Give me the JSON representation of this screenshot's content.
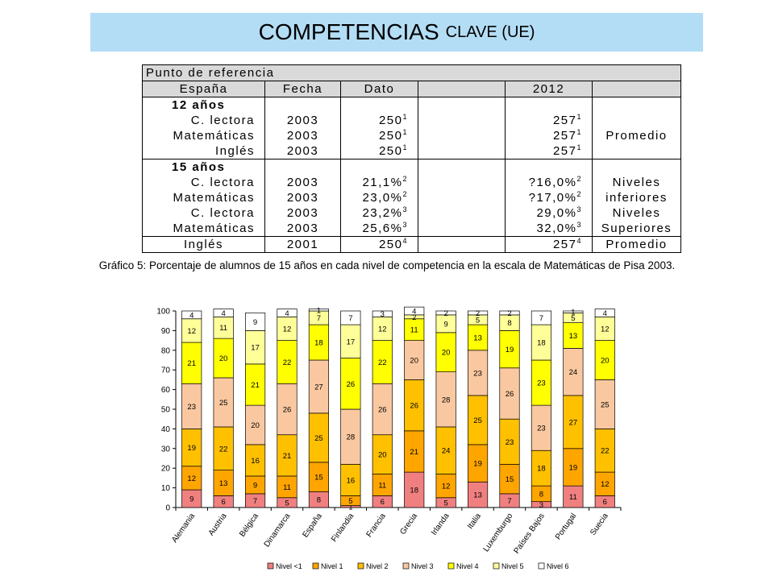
{
  "page_title": {
    "main": "COMPETENCIAS",
    "sub": "CLAVE (UE)"
  },
  "ref_table": {
    "header": "Punto de referencia",
    "columns": [
      "España",
      "Fecha",
      "Dato",
      "",
      "2012",
      ""
    ],
    "group_12": "12 años",
    "rows_12": [
      {
        "label": "C. lectora",
        "fecha": "2003",
        "dato": "250",
        "dato_sup": "1",
        "v2012": "257",
        "v2012_sup": "1",
        "tipo": ""
      },
      {
        "label": "Matemáticas",
        "fecha": "2003",
        "dato": "250",
        "dato_sup": "1",
        "v2012": "257",
        "v2012_sup": "1",
        "tipo": "Promedio"
      },
      {
        "label": "Inglés",
        "fecha": "2003",
        "dato": "250",
        "dato_sup": "1",
        "v2012": "257",
        "v2012_sup": "1",
        "tipo": ""
      }
    ],
    "group_15": "15 años",
    "rows_15": [
      {
        "label": "C. lectora",
        "fecha": "2003",
        "dato": "21,1%",
        "dato_sup": "2",
        "v2012": "?16,0%",
        "v2012_sup": "2",
        "tipo": "Niveles"
      },
      {
        "label": "Matemáticas",
        "fecha": "2003",
        "dato": "23,0%",
        "dato_sup": "2",
        "v2012": "?17,0%",
        "v2012_sup": "2",
        "tipo": "inferiores"
      },
      {
        "label": "C. lectora",
        "fecha": "2003",
        "dato": "23,2%",
        "dato_sup": "3",
        "v2012": "29,0%",
        "v2012_sup": "3",
        "tipo": "Niveles"
      },
      {
        "label": "Matemáticas",
        "fecha": "2003",
        "dato": "25,6%",
        "dato_sup": "3",
        "v2012": "32,0%",
        "v2012_sup": "3",
        "tipo": "Superiores"
      }
    ],
    "last_row": {
      "label": "Inglés",
      "fecha": "2001",
      "dato": "250",
      "dato_sup": "4",
      "v2012": "257",
      "v2012_sup": "4",
      "tipo": "Promedio"
    }
  },
  "caption": "Gráfico 5: Porcentaje de alumnos de 15 años en cada nivel de competencia en la escala de Matemáticas de Pisa 2003.",
  "chart_data": {
    "type": "bar",
    "stacked": true,
    "categories": [
      "Alemania",
      "Austria",
      "Bélgica",
      "Dinamarca",
      "España",
      "Finlandia",
      "Francia",
      "Grecia",
      "Irlanda",
      "Italia",
      "Luxemburgo",
      "Países Bajos",
      "Portugal",
      "Suecia"
    ],
    "series": [
      {
        "name": "Nivel <1",
        "color": "#f08080",
        "values": [
          9,
          6,
          7,
          5,
          8,
          1,
          6,
          18,
          5,
          13,
          7,
          3,
          11,
          6
        ]
      },
      {
        "name": "Nivel 1",
        "color": "#ffa500",
        "values": [
          12,
          13,
          9,
          11,
          15,
          5,
          11,
          21,
          12,
          19,
          15,
          8,
          19,
          12
        ]
      },
      {
        "name": "Nivel 2",
        "color": "#ffc000",
        "values": [
          19,
          22,
          16,
          21,
          25,
          16,
          20,
          26,
          24,
          25,
          23,
          18,
          27,
          22
        ]
      },
      {
        "name": "Nivel 3",
        "color": "#fac8a0",
        "values": [
          23,
          25,
          20,
          26,
          27,
          28,
          26,
          20,
          28,
          23,
          26,
          23,
          24,
          25
        ]
      },
      {
        "name": "Nivel 4",
        "color": "#ffff00",
        "values": [
          21,
          20,
          21,
          22,
          18,
          26,
          22,
          11,
          20,
          13,
          19,
          23,
          13,
          20
        ]
      },
      {
        "name": "Nivel 5",
        "color": "#ffff99",
        "values": [
          12,
          11,
          17,
          12,
          7,
          17,
          12,
          2,
          9,
          5,
          8,
          18,
          5,
          12
        ]
      },
      {
        "name": "Nivel 6",
        "color": "#ffffff",
        "values": [
          4,
          4,
          9,
          4,
          1,
          7,
          3,
          4,
          2,
          2,
          2,
          7,
          1,
          4
        ]
      }
    ],
    "ylim": [
      0,
      100
    ],
    "yticks": [
      0,
      10,
      20,
      30,
      40,
      50,
      60,
      70,
      80,
      90,
      100
    ],
    "legend_position": "bottom-right",
    "grid": false
  }
}
